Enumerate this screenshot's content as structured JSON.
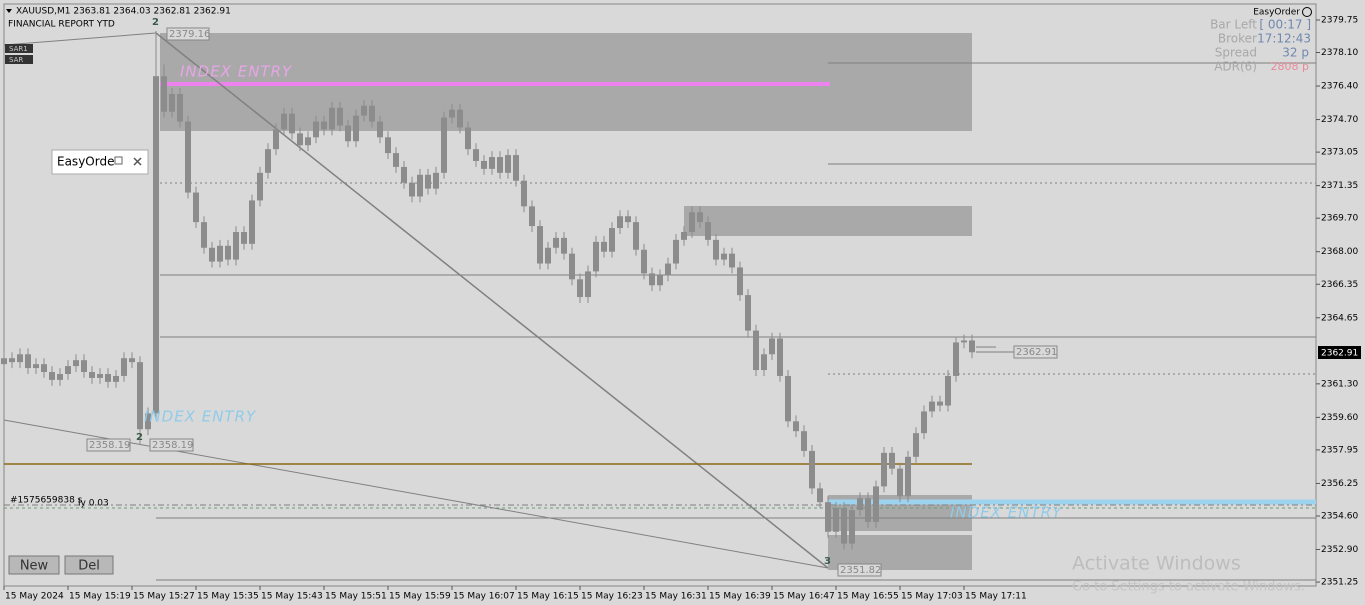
{
  "header": {
    "symbol_line": "XAUUSD,M1  2363.81 2364.03 2362.81 2362.91",
    "indicator": "FINANCIAL REPORT YTD",
    "tags": [
      "SAR1",
      "SAR"
    ]
  },
  "info_panel": {
    "title": "EasyOrder",
    "rows": [
      {
        "label": "Bar Left",
        "value": "[ 00:17 ]"
      },
      {
        "label": "Broker",
        "value": "17:12:43"
      },
      {
        "label": "Spread",
        "value": "32 p"
      },
      {
        "label": "ADR(6)",
        "value": "2808 p"
      }
    ]
  },
  "mini_panel": {
    "title": "EasyOrde"
  },
  "buttons": [
    "New",
    "Del"
  ],
  "overlay": {
    "price_labels": [
      "2379.16",
      "2358.19",
      "2358.19",
      "2351.82",
      "2362.91"
    ],
    "zone_labels": [
      "INDEX ENTRY",
      "INDEX ENTRY"
    ],
    "wave_labels": [
      "2",
      "2",
      "3"
    ],
    "order_text": [
      "#1575659838 s",
      "ly 0.03"
    ],
    "watermark": [
      "Activate Windows",
      "Go to Settings to activate Windows."
    ]
  },
  "price_axis": {
    "current": "2362.91"
  },
  "chart_data": {
    "type": "candlestick",
    "color": "#8c8c8c",
    "categories": [
      "15 May 2024",
      null,
      null,
      null,
      null,
      null,
      null,
      null,
      "15 May 15:19",
      null,
      null,
      null,
      null,
      null,
      null,
      null,
      "15 May 15:27",
      null,
      null,
      null,
      null,
      null,
      null,
      null,
      "15 May 15:35",
      null,
      null,
      null,
      null,
      null,
      null,
      null,
      "15 May 15:43",
      null,
      null,
      null,
      null,
      null,
      null,
      null,
      "15 May 15:51",
      null,
      null,
      null,
      null,
      null,
      null,
      null,
      "15 May 15:59",
      null,
      null,
      null,
      null,
      null,
      null,
      null,
      "15 May 16:07",
      null,
      null,
      null,
      null,
      null,
      null,
      null,
      "15 May 16:15",
      null,
      null,
      null,
      null,
      null,
      null,
      null,
      "15 May 16:23",
      null,
      null,
      null,
      null,
      null,
      null,
      null,
      "15 May 16:31",
      null,
      null,
      null,
      null,
      null,
      null,
      null,
      "15 May 16:39",
      null,
      null,
      null,
      null,
      null,
      null,
      null,
      "15 May 16:47",
      null,
      null,
      null,
      null,
      null,
      null,
      null,
      "15 May 16:55",
      null,
      null,
      null,
      null,
      null,
      null,
      null,
      "15 May 17:03",
      null,
      null,
      null,
      null,
      null,
      null,
      null,
      "15 May 17:11",
      null
    ],
    "open": [
      2362.3,
      2362.6,
      2362.4,
      2362.8,
      2362.1,
      2362.3,
      2361.9,
      2361.5,
      2361.8,
      2362.2,
      2362.5,
      2361.9,
      2361.6,
      2361.8,
      2361.4,
      2361.7,
      2362.6,
      2362.4,
      2359.0,
      2359.8,
      2376.9,
      2375.1,
      2376.0,
      2374.6,
      2371.0,
      2369.5,
      2368.2,
      2367.5,
      2368.3,
      2367.6,
      2369.0,
      2368.4,
      2370.6,
      2372.0,
      2373.2,
      2374.2,
      2375.0,
      2374.0,
      2373.4,
      2373.8,
      2374.6,
      2374.2,
      2375.3,
      2374.4,
      2373.6,
      2374.9,
      2375.4,
      2374.6,
      2373.8,
      2373.0,
      2372.3,
      2371.5,
      2370.8,
      2371.9,
      2371.2,
      2372.0,
      2374.8,
      2375.2,
      2374.3,
      2373.2,
      2372.6,
      2372.2,
      2372.8,
      2372.0,
      2372.9,
      2371.6,
      2370.3,
      2369.3,
      2367.4,
      2368.2,
      2368.7,
      2367.9,
      2366.6,
      2365.7,
      2367.0,
      2368.5,
      2368.0,
      2369.2,
      2369.8,
      2369.5,
      2368.1,
      2366.9,
      2366.3,
      2366.8,
      2367.4,
      2368.6,
      2369.0,
      2370.0,
      2369.5,
      2368.6,
      2367.6,
      2367.9,
      2367.2,
      2365.8,
      2364.0,
      2362.0,
      2362.8,
      2363.6,
      2361.7,
      2359.4,
      2358.9,
      2357.9,
      2356.0,
      2355.3,
      2353.8,
      2355.0,
      2353.2,
      2354.9,
      2355.5,
      2354.3,
      2356.1,
      2357.8,
      2357.0,
      2355.6,
      2357.6,
      2358.8,
      2359.9,
      2360.4,
      2360.2,
      2361.7,
      2363.4,
      2363.5
    ],
    "high": [
      2362.9,
      2362.9,
      2363.1,
      2363.1,
      2362.6,
      2362.6,
      2362.2,
      2362.1,
      2362.5,
      2362.8,
      2362.8,
      2362.2,
      2362.1,
      2362.1,
      2362.0,
      2362.9,
      2362.9,
      2362.7,
      2360.1,
      2379.2,
      2377.5,
      2376.3,
      2376.3,
      2374.9,
      2371.3,
      2369.8,
      2368.5,
      2368.6,
      2368.6,
      2369.3,
      2369.3,
      2370.9,
      2372.3,
      2373.5,
      2374.5,
      2375.3,
      2375.3,
      2374.3,
      2374.1,
      2374.9,
      2374.9,
      2375.6,
      2375.6,
      2374.7,
      2375.2,
      2375.7,
      2375.7,
      2374.9,
      2374.1,
      2373.3,
      2372.6,
      2371.8,
      2372.2,
      2372.2,
      2372.3,
      2375.1,
      2375.5,
      2375.5,
      2374.6,
      2373.5,
      2372.9,
      2373.1,
      2373.1,
      2373.2,
      2373.2,
      2371.9,
      2370.6,
      2369.6,
      2368.5,
      2369.0,
      2369.0,
      2368.2,
      2366.9,
      2367.3,
      2368.8,
      2368.8,
      2369.5,
      2370.1,
      2370.1,
      2369.8,
      2368.4,
      2367.2,
      2367.1,
      2367.7,
      2368.9,
      2369.3,
      2370.3,
      2370.3,
      2369.8,
      2368.9,
      2368.2,
      2368.2,
      2367.5,
      2366.1,
      2364.3,
      2363.1,
      2363.9,
      2363.9,
      2362.0,
      2359.7,
      2359.2,
      2358.2,
      2356.3,
      2355.6,
      2355.3,
      2355.3,
      2355.2,
      2355.8,
      2355.8,
      2356.4,
      2358.1,
      2358.1,
      2357.3,
      2357.9,
      2359.1,
      2360.2,
      2360.7,
      2360.7,
      2362.0,
      2363.7,
      2363.8,
      2363.8
    ],
    "low": [
      2362.0,
      2362.1,
      2362.1,
      2361.8,
      2361.8,
      2361.6,
      2361.2,
      2361.2,
      2361.5,
      2361.9,
      2361.6,
      2361.3,
      2361.3,
      2361.1,
      2361.1,
      2361.4,
      2362.1,
      2358.2,
      2358.7,
      2359.5,
      2374.8,
      2374.8,
      2374.3,
      2370.7,
      2369.2,
      2367.9,
      2367.2,
      2367.2,
      2367.3,
      2367.3,
      2368.1,
      2368.1,
      2370.3,
      2371.7,
      2372.9,
      2373.9,
      2373.7,
      2373.1,
      2373.1,
      2373.5,
      2373.9,
      2373.9,
      2374.1,
      2373.3,
      2373.3,
      2374.6,
      2374.3,
      2373.5,
      2372.7,
      2372.0,
      2371.2,
      2370.5,
      2370.5,
      2370.9,
      2370.9,
      2371.7,
      2374.5,
      2374.0,
      2372.9,
      2372.3,
      2371.9,
      2371.9,
      2371.7,
      2371.7,
      2371.3,
      2370.0,
      2369.0,
      2367.1,
      2367.1,
      2367.9,
      2367.6,
      2366.3,
      2365.4,
      2365.4,
      2366.7,
      2367.7,
      2367.7,
      2368.9,
      2369.2,
      2367.8,
      2366.6,
      2366.0,
      2366.0,
      2366.5,
      2367.1,
      2368.3,
      2368.7,
      2369.2,
      2368.3,
      2367.3,
      2367.3,
      2366.9,
      2365.5,
      2363.7,
      2361.7,
      2361.7,
      2362.5,
      2361.4,
      2359.1,
      2358.6,
      2357.6,
      2355.7,
      2355.0,
      2353.5,
      2353.5,
      2352.9,
      2352.9,
      2354.6,
      2354.0,
      2354.0,
      2355.8,
      2356.7,
      2355.3,
      2355.3,
      2357.3,
      2358.5,
      2359.6,
      2359.9,
      2359.9,
      2361.4,
      2363.1,
      2362.6
    ],
    "close": [
      2362.6,
      2362.4,
      2362.8,
      2362.1,
      2362.3,
      2361.9,
      2361.5,
      2361.8,
      2362.2,
      2362.5,
      2361.9,
      2361.6,
      2361.8,
      2361.4,
      2361.7,
      2362.6,
      2362.4,
      2359.0,
      2359.8,
      2376.9,
      2375.1,
      2376.0,
      2374.6,
      2371.0,
      2369.5,
      2368.2,
      2367.5,
      2368.3,
      2367.6,
      2369.0,
      2368.4,
      2370.6,
      2372.0,
      2373.2,
      2374.2,
      2375.0,
      2374.0,
      2373.4,
      2373.8,
      2374.6,
      2374.2,
      2375.3,
      2374.4,
      2373.6,
      2374.9,
      2375.4,
      2374.6,
      2373.8,
      2373.0,
      2372.3,
      2371.5,
      2370.8,
      2371.9,
      2371.2,
      2372.0,
      2374.8,
      2375.2,
      2374.3,
      2373.2,
      2372.6,
      2372.2,
      2372.8,
      2372.0,
      2372.9,
      2371.6,
      2370.3,
      2369.3,
      2367.4,
      2368.2,
      2368.7,
      2367.9,
      2366.6,
      2365.7,
      2367.0,
      2368.5,
      2368.0,
      2369.2,
      2369.8,
      2369.5,
      2368.1,
      2366.9,
      2366.3,
      2366.8,
      2367.4,
      2368.6,
      2369.0,
      2370.0,
      2369.5,
      2368.6,
      2367.6,
      2367.9,
      2367.2,
      2365.8,
      2364.0,
      2362.0,
      2362.8,
      2363.6,
      2361.7,
      2359.4,
      2358.9,
      2357.9,
      2356.0,
      2355.3,
      2353.8,
      2355.0,
      2353.2,
      2354.9,
      2355.5,
      2354.3,
      2356.1,
      2357.8,
      2357.0,
      2355.6,
      2357.6,
      2358.8,
      2359.9,
      2360.4,
      2360.2,
      2361.7,
      2363.4,
      2363.5,
      2362.9
    ],
    "ylim": [
      2351.05,
      2380.56
    ],
    "yticks": [
      2379.75,
      {
        "value": 2378.1,
        "label": "2378.10"
      },
      {
        "value": 2376.4,
        "label": "2376.40"
      },
      {
        "value": 2374.7,
        "label": "2374.70"
      },
      2373.05,
      2371.35,
      {
        "value": 2369.7,
        "label": "2369.70"
      },
      {
        "value": 2368,
        "label": "2368.00"
      },
      2366.35,
      2364.65,
      {
        "value": 2361.3,
        "label": "2361.30"
      },
      {
        "value": 2359.6,
        "label": "2359.60"
      },
      2357.95,
      2356.25,
      {
        "value": 2354.6,
        "label": "2354.60"
      },
      {
        "value": 2352.9,
        "label": "2352.90"
      },
      2351.25
    ]
  }
}
